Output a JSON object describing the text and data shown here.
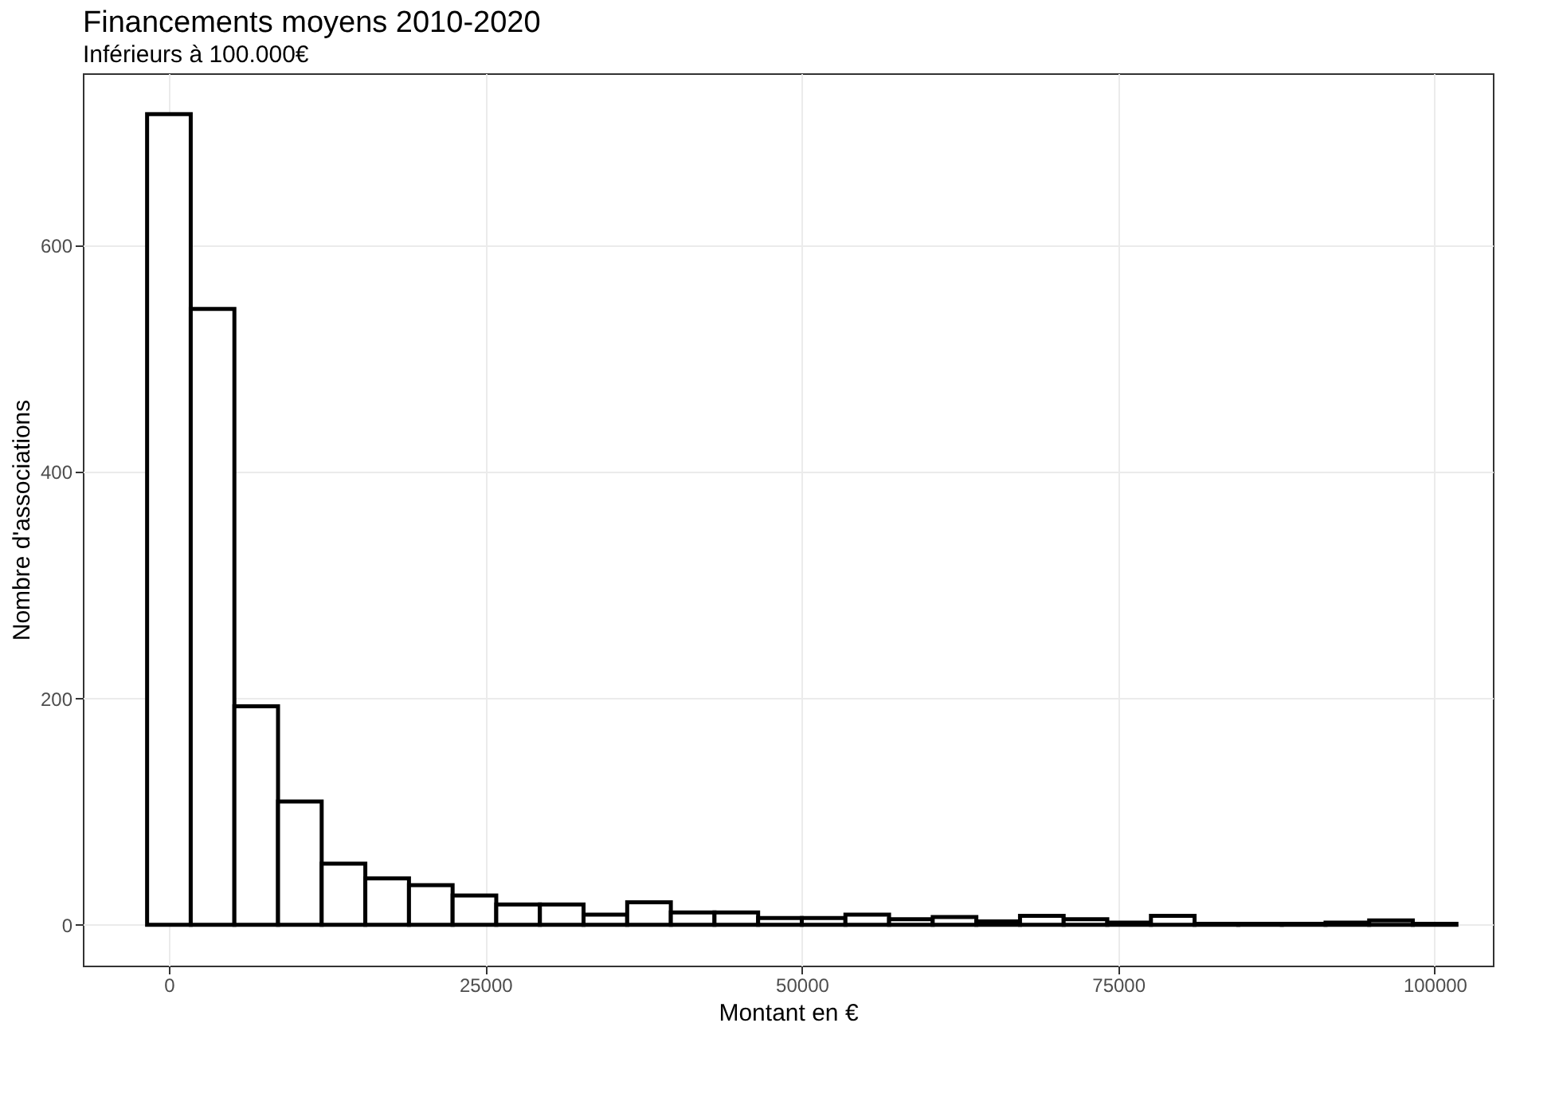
{
  "chart_data": {
    "type": "histogram",
    "title": "Financements moyens 2010-2020",
    "subtitle": "Inférieurs à 100.000€",
    "xlabel": "Montant en €",
    "ylabel": "Nombre d'associations",
    "bins": [
      -1724,
      1724,
      5172,
      8621,
      12069,
      15517,
      18966,
      22414,
      25862,
      29310,
      32759,
      36207,
      39655,
      43103,
      46552,
      50000,
      53448,
      56897,
      60345,
      63793,
      67241,
      70690,
      74138,
      77586,
      81034,
      84483,
      87931,
      91379,
      94828,
      98276,
      101724
    ],
    "values": [
      716,
      544,
      193,
      109,
      54,
      41,
      35,
      26,
      18,
      18,
      9,
      20,
      11,
      11,
      6,
      6,
      9,
      5,
      7,
      3,
      8,
      5,
      2,
      8,
      1,
      1,
      1,
      2,
      4,
      1
    ],
    "color": "#ffffff",
    "xlim": [
      -6800,
      104600
    ],
    "ylim": [
      -36,
      752
    ],
    "xticks": [
      0,
      25000,
      50000,
      75000,
      100000
    ],
    "yticks": [
      0,
      200,
      400,
      600
    ],
    "grid": true
  }
}
